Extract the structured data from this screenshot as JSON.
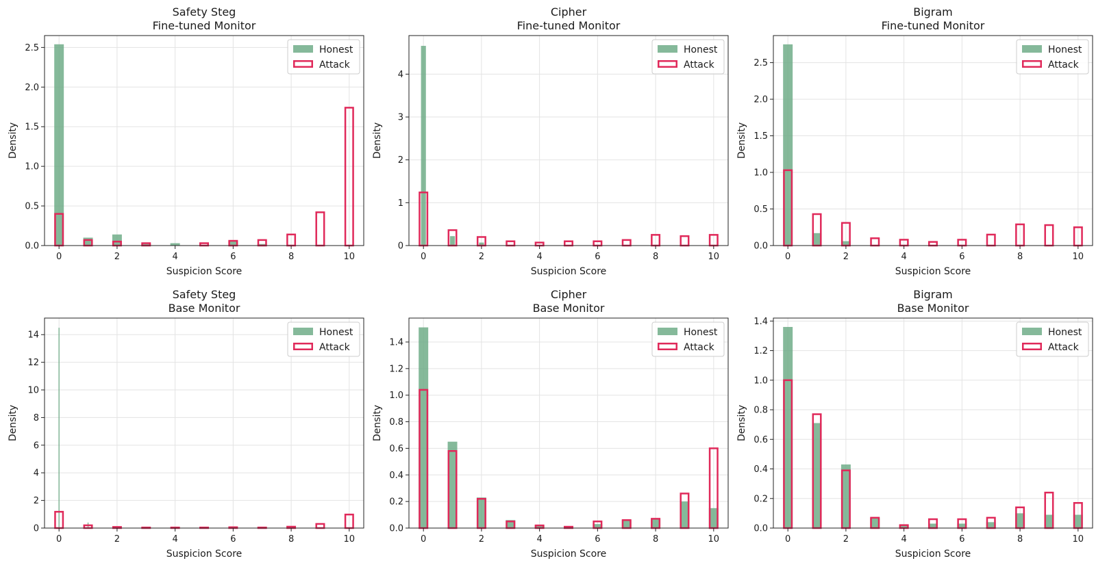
{
  "colors": {
    "honest": "#6aaa84",
    "attack": "#e0295a",
    "grid": "#e3e3e3",
    "axis": "#222222"
  },
  "chart_data": [
    {
      "type": "bar",
      "title": "Safety Steg",
      "subtitle": "Fine-tuned Monitor",
      "xlabel": "Suspicion Score",
      "ylabel": "Density",
      "xlim": [
        -0.5,
        10.5
      ],
      "ylim": [
        0,
        2.65
      ],
      "yticks": [
        0,
        0.5,
        1.0,
        1.5,
        2.0,
        2.5
      ],
      "ytick_labels": [
        "0.0",
        "0.5",
        "1.0",
        "1.5",
        "2.0",
        "2.5"
      ],
      "xticks": [
        0,
        2,
        4,
        6,
        8,
        10
      ],
      "xtick_labels": [
        "0",
        "2",
        "4",
        "6",
        "8",
        "10"
      ],
      "legend": [
        "Honest",
        "Attack"
      ],
      "legend_loc": "upper right",
      "series": [
        {
          "name": "Honest",
          "style": "filled",
          "width": 0.33,
          "bars": [
            [
              0,
              2.54
            ],
            [
              1,
              0.1
            ],
            [
              2,
              0.14
            ],
            [
              3,
              0.02
            ],
            [
              4,
              0.03
            ],
            [
              6,
              0.06
            ],
            [
              7,
              0.02
            ]
          ]
        },
        {
          "name": "Attack",
          "style": "outline",
          "width": 0.33,
          "bars": [
            [
              0,
              0.4
            ],
            [
              1,
              0.07
            ],
            [
              2,
              0.05
            ],
            [
              3,
              0.03
            ],
            [
              5,
              0.03
            ],
            [
              6,
              0.06
            ],
            [
              7,
              0.07
            ],
            [
              8,
              0.14
            ],
            [
              9,
              0.42
            ],
            [
              10,
              1.74
            ]
          ]
        }
      ]
    },
    {
      "type": "bar",
      "title": "Cipher",
      "subtitle": "Fine-tuned Monitor",
      "xlabel": "Suspicion Score",
      "ylabel": "Density",
      "xlim": [
        -0.5,
        10.5
      ],
      "ylim": [
        0,
        4.9
      ],
      "yticks": [
        0,
        1,
        2,
        3,
        4
      ],
      "ytick_labels": [
        "0",
        "1",
        "2",
        "3",
        "4"
      ],
      "xticks": [
        0,
        2,
        4,
        6,
        8,
        10
      ],
      "xtick_labels": [
        "0",
        "2",
        "4",
        "6",
        "8",
        "10"
      ],
      "legend": [
        "Honest",
        "Attack"
      ],
      "legend_loc": "upper right",
      "series": [
        {
          "name": "Honest",
          "style": "filled",
          "width": 0.17,
          "bars": [
            [
              0,
              4.66
            ],
            [
              1,
              0.22
            ],
            [
              2,
              0.07
            ]
          ]
        },
        {
          "name": "Attack",
          "style": "outline",
          "width": 0.33,
          "bars": [
            [
              0,
              1.24
            ],
            [
              1,
              0.36
            ],
            [
              2,
              0.2
            ],
            [
              3,
              0.1
            ],
            [
              4,
              0.07
            ],
            [
              5,
              0.1
            ],
            [
              6,
              0.1
            ],
            [
              7,
              0.13
            ],
            [
              8,
              0.25
            ],
            [
              9,
              0.22
            ],
            [
              10,
              0.25
            ]
          ]
        }
      ]
    },
    {
      "type": "bar",
      "title": "Bigram",
      "subtitle": "Fine-tuned Monitor",
      "xlabel": "Suspicion Score",
      "ylabel": "Density",
      "xlim": [
        -0.5,
        10.5
      ],
      "ylim": [
        0,
        2.87
      ],
      "yticks": [
        0,
        0.5,
        1.0,
        1.5,
        2.0,
        2.5
      ],
      "ytick_labels": [
        "0.0",
        "0.5",
        "1.0",
        "1.5",
        "2.0",
        "2.5"
      ],
      "xticks": [
        0,
        2,
        4,
        6,
        8,
        10
      ],
      "xtick_labels": [
        "0",
        "2",
        "4",
        "6",
        "8",
        "10"
      ],
      "legend": [
        "Honest",
        "Attack"
      ],
      "legend_loc": "upper right",
      "series": [
        {
          "name": "Honest",
          "style": "filled",
          "width": 0.33,
          "bars": [
            [
              0,
              2.75
            ],
            [
              1,
              0.17
            ],
            [
              2,
              0.06
            ]
          ]
        },
        {
          "name": "Attack",
          "style": "outline",
          "width": 0.33,
          "bars": [
            [
              0,
              1.03
            ],
            [
              1,
              0.43
            ],
            [
              2,
              0.31
            ],
            [
              3,
              0.1
            ],
            [
              4,
              0.08
            ],
            [
              5,
              0.05
            ],
            [
              6,
              0.08
            ],
            [
              7,
              0.15
            ],
            [
              8,
              0.29
            ],
            [
              9,
              0.28
            ],
            [
              10,
              0.25
            ]
          ]
        }
      ]
    },
    {
      "type": "bar",
      "title": "Safety Steg",
      "subtitle": "Base Monitor",
      "xlabel": "Suspicion Score",
      "ylabel": "Density",
      "xlim": [
        -0.5,
        10.5
      ],
      "ylim": [
        0,
        15.2
      ],
      "yticks": [
        0,
        2,
        4,
        6,
        8,
        10,
        12,
        14
      ],
      "ytick_labels": [
        "0",
        "2",
        "4",
        "6",
        "8",
        "10",
        "12",
        "14"
      ],
      "xticks": [
        0,
        2,
        4,
        6,
        8,
        10
      ],
      "xtick_labels": [
        "0",
        "2",
        "4",
        "6",
        "8",
        "10"
      ],
      "legend": [
        "Honest",
        "Attack"
      ],
      "legend_loc": "upper right",
      "series": [
        {
          "name": "Honest",
          "style": "filled",
          "width": 0.035,
          "bars": [
            [
              0,
              14.5
            ],
            [
              1,
              0.4
            ]
          ]
        },
        {
          "name": "Attack",
          "style": "outline",
          "width": 0.33,
          "bars": [
            [
              0,
              1.18
            ],
            [
              1,
              0.2
            ],
            [
              2,
              0.08
            ],
            [
              3,
              0.04
            ],
            [
              4,
              0.04
            ],
            [
              5,
              0.03
            ],
            [
              6,
              0.06
            ],
            [
              7,
              0.04
            ],
            [
              8,
              0.1
            ],
            [
              9,
              0.3
            ],
            [
              10,
              0.98
            ]
          ]
        }
      ]
    },
    {
      "type": "bar",
      "title": "Cipher",
      "subtitle": "Base Monitor",
      "xlabel": "Suspicion Score",
      "ylabel": "Density",
      "xlim": [
        -0.5,
        10.5
      ],
      "ylim": [
        0,
        1.58
      ],
      "yticks": [
        0,
        0.2,
        0.4,
        0.6,
        0.8,
        1.0,
        1.2,
        1.4
      ],
      "ytick_labels": [
        "0.0",
        "0.2",
        "0.4",
        "0.6",
        "0.8",
        "1.0",
        "1.2",
        "1.4"
      ],
      "xticks": [
        0,
        2,
        4,
        6,
        8,
        10
      ],
      "xtick_labels": [
        "0",
        "2",
        "4",
        "6",
        "8",
        "10"
      ],
      "legend": [
        "Honest",
        "Attack"
      ],
      "legend_loc": "upper right",
      "series": [
        {
          "name": "Honest",
          "style": "filled",
          "width": 0.33,
          "bars": [
            [
              0,
              1.51
            ],
            [
              1,
              0.65
            ],
            [
              2,
              0.23
            ],
            [
              3,
              0.06
            ],
            [
              4,
              0.02
            ],
            [
              5,
              0.01
            ],
            [
              6,
              0.03
            ],
            [
              7,
              0.06
            ],
            [
              8,
              0.07
            ],
            [
              9,
              0.2
            ],
            [
              10,
              0.15
            ]
          ]
        },
        {
          "name": "Attack",
          "style": "outline",
          "width": 0.33,
          "bars": [
            [
              0,
              1.04
            ],
            [
              1,
              0.58
            ],
            [
              2,
              0.22
            ],
            [
              3,
              0.05
            ],
            [
              4,
              0.02
            ],
            [
              5,
              0.01
            ],
            [
              6,
              0.05
            ],
            [
              7,
              0.06
            ],
            [
              8,
              0.07
            ],
            [
              9,
              0.26
            ],
            [
              10,
              0.6
            ]
          ]
        }
      ]
    },
    {
      "type": "bar",
      "title": "Bigram",
      "subtitle": "Base Monitor",
      "xlabel": "Suspicion Score",
      "ylabel": "Density",
      "xlim": [
        -0.5,
        10.5
      ],
      "ylim": [
        0,
        1.42
      ],
      "yticks": [
        0,
        0.2,
        0.4,
        0.6,
        0.8,
        1.0,
        1.2,
        1.4
      ],
      "ytick_labels": [
        "0.0",
        "0.2",
        "0.4",
        "0.6",
        "0.8",
        "1.0",
        "1.2",
        "1.4"
      ],
      "xticks": [
        0,
        2,
        4,
        6,
        8,
        10
      ],
      "xtick_labels": [
        "0",
        "2",
        "4",
        "6",
        "8",
        "10"
      ],
      "legend": [
        "Honest",
        "Attack"
      ],
      "legend_loc": "upper right",
      "series": [
        {
          "name": "Honest",
          "style": "filled",
          "width": 0.33,
          "bars": [
            [
              0,
              1.36
            ],
            [
              1,
              0.71
            ],
            [
              2,
              0.43
            ],
            [
              3,
              0.07
            ],
            [
              4,
              0.02
            ],
            [
              5,
              0.03
            ],
            [
              6,
              0.03
            ],
            [
              7,
              0.04
            ],
            [
              8,
              0.1
            ],
            [
              9,
              0.09
            ],
            [
              10,
              0.09
            ]
          ]
        },
        {
          "name": "Attack",
          "style": "outline",
          "width": 0.33,
          "bars": [
            [
              0,
              1.0
            ],
            [
              1,
              0.77
            ],
            [
              2,
              0.39
            ],
            [
              3,
              0.07
            ],
            [
              4,
              0.02
            ],
            [
              5,
              0.06
            ],
            [
              6,
              0.06
            ],
            [
              7,
              0.07
            ],
            [
              8,
              0.14
            ],
            [
              9,
              0.24
            ],
            [
              10,
              0.17
            ]
          ]
        }
      ]
    }
  ]
}
